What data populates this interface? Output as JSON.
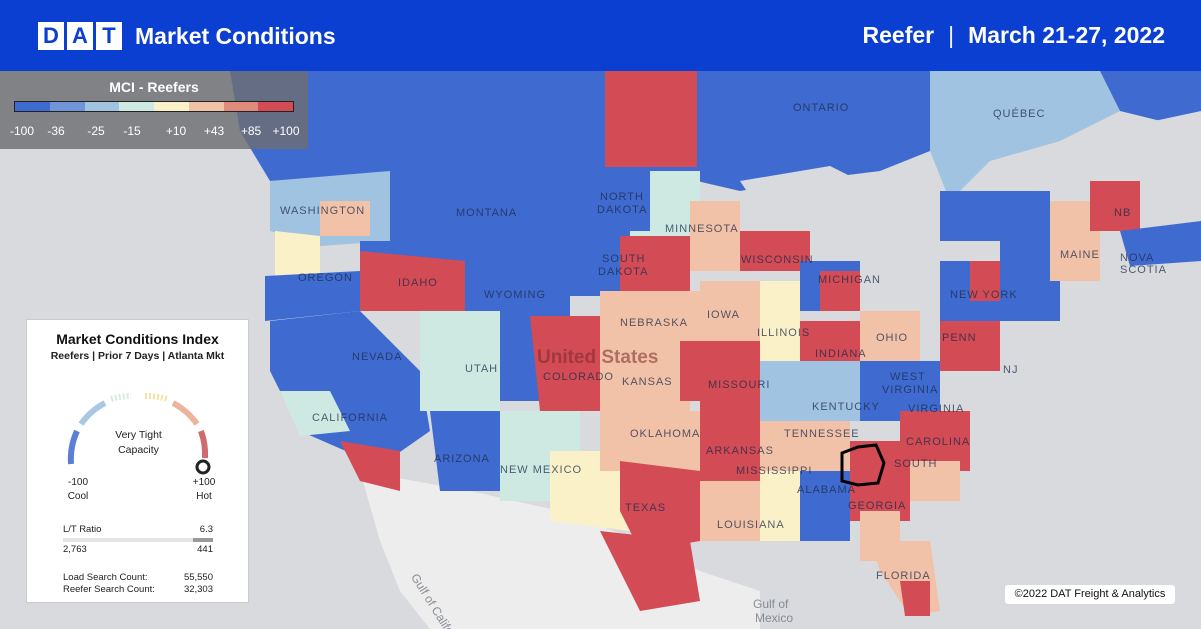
{
  "header": {
    "logo_letters": [
      "D",
      "A",
      "T"
    ],
    "title": "Market Conditions",
    "equipment": "Reefer",
    "separator": "|",
    "date_range": "March 21-27, 2022"
  },
  "legend": {
    "title": "MCI - Reefers",
    "ticks": [
      "-100",
      "-36",
      "-25",
      "-15",
      "+10",
      "+43",
      "+85",
      "+100"
    ],
    "colors": [
      "#3f6bd0",
      "#6f95d8",
      "#9fc3e0",
      "#cde9e2",
      "#fbf1c8",
      "#f2c2a8",
      "#e08a7c",
      "#d24b55"
    ]
  },
  "map": {
    "labels": {
      "ontario": "ONTARIO",
      "quebec": "QUÉBEC",
      "washington": "WASHINGTON",
      "montana": "MONTANA",
      "north_dakota_1": "NORTH",
      "north_dakota_2": "DAKOTA",
      "minnesota": "MINNESOTA",
      "oregon": "OREGON",
      "idaho": "IDAHO",
      "wyoming": "WYOMING",
      "south_dakota_1": "SOUTH",
      "south_dakota_2": "DAKOTA",
      "wisconsin": "WISCONSIN",
      "michigan": "MICHIGAN",
      "maine": "MAINE",
      "nb": "NB",
      "nova_scotia": "NOVA SCOTIA",
      "new_york": "NEW YORK",
      "nebraska": "NEBRASKA",
      "iowa": "IOWA",
      "illinois": "ILLINOIS",
      "indiana": "INDIANA",
      "ohio": "OHIO",
      "penn": "PENN",
      "nj": "NJ",
      "nevada": "NEVADA",
      "utah": "UTAH",
      "colorado": "COLORADO",
      "united_states": "United States",
      "kansas": "KANSAS",
      "missouri": "MISSOURI",
      "kentucky": "KENTUCKY",
      "west_virginia_1": "WEST",
      "west_virginia_2": "VIRGINIA",
      "virginia": "VIRGINIA",
      "california": "CALIFORNIA",
      "oklahoma": "OKLAHOMA",
      "tennessee": "TENNESSEE",
      "north_carolina": "CAROLINA",
      "arizona": "ARIZONA",
      "new_mexico": "NEW MEXICO",
      "arkansas": "ARKANSAS",
      "mississippi": "MISSISSIPPI",
      "south_carolina": "SOUTH",
      "alabama": "ALABAMA",
      "georgia": "GEORGIA",
      "texas": "TEXAS",
      "louisiana": "LOUISIANA",
      "florida": "FLORIDA",
      "gulf_california": "Gulf of California",
      "gulf_mexico_1": "Gulf of",
      "gulf_mexico_2": "Mexico"
    }
  },
  "index_card": {
    "title": "Market Conditions Index",
    "subtitle": "Reefers | Prior 7 Days | Atlanta Mkt",
    "status_line_1": "Very Tight",
    "status_line_2": "Capacity",
    "min_value": "-100",
    "min_label": "Cool",
    "max_value": "+100",
    "max_label": "Hot",
    "gauge_value": 100,
    "lt_ratio_label": "L/T Ratio",
    "lt_ratio_value": "6.3",
    "lt_left": "2,763",
    "lt_right": "441",
    "load_search_label": "Load Search Count:",
    "load_search_value": "55,550",
    "reefer_search_label": "Reefer Search Count:",
    "reefer_search_value": "32,303"
  },
  "copyright": "©2022 DAT Freight & Analytics",
  "colors": {
    "header_bg": "#0b3fd1",
    "cool": "#3f6bd0",
    "hot": "#d24b55",
    "land": "#ededed",
    "water": "#d8dadd"
  }
}
